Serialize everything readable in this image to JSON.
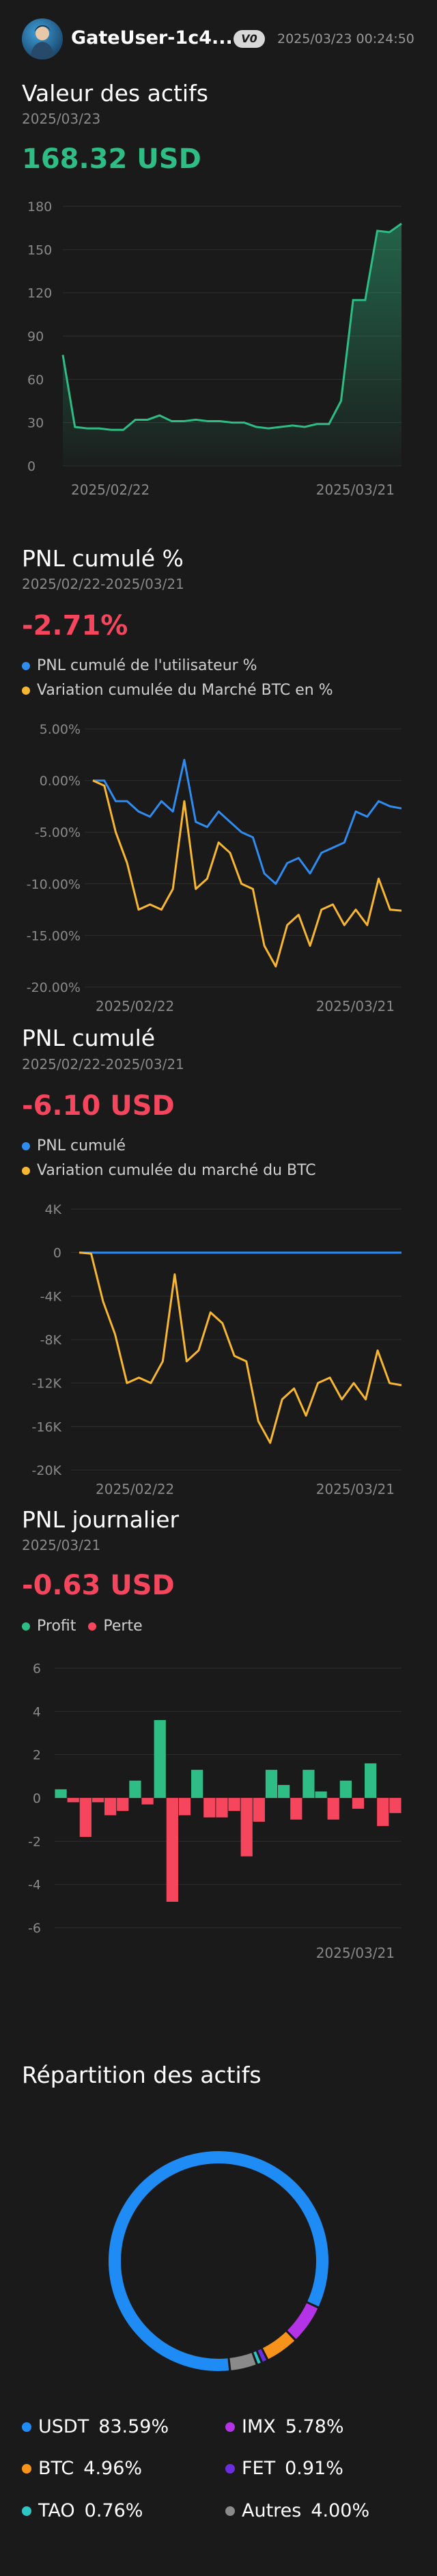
{
  "header": {
    "username": "GateUser-1c4...",
    "badge": "V0",
    "timestamp": "2025/03/23 00:24:50"
  },
  "asset_value": {
    "title": "Valeur des actifs",
    "date": "2025/03/23",
    "value": "168.32 USD",
    "color": "#2ebd85"
  },
  "pnl_pct": {
    "title": "PNL cumulé %",
    "range": "2025/02/22-2025/03/21",
    "value": "-2.71%",
    "color": "#f6465d",
    "legend_user": "PNL cumulé de l'utilisateur %",
    "legend_btc": "Variation cumulée du Marché BTC en %"
  },
  "pnl_usd": {
    "title": "PNL cumulé",
    "range": "2025/02/22-2025/03/21",
    "value": "-6.10 USD",
    "color": "#f6465d",
    "legend_user": "PNL cumulé",
    "legend_btc": "Variation cumulée du marché du BTC"
  },
  "pnl_daily": {
    "title": "PNL journalier",
    "date": "2025/03/21",
    "value": "-0.63 USD",
    "color": "#f6465d",
    "legend_profit": "Profit",
    "legend_loss": "Perte"
  },
  "allocation": {
    "title": "Répartition des actifs",
    "items": [
      {
        "name": "USDT",
        "pct": "83.59%",
        "value": 83.59,
        "color": "#1f8cf5"
      },
      {
        "name": "IMX",
        "pct": "5.78%",
        "value": 5.78,
        "color": "#b433e6"
      },
      {
        "name": "BTC",
        "pct": "4.96%",
        "value": 4.96,
        "color": "#f7931a"
      },
      {
        "name": "FET",
        "pct": "0.91%",
        "value": 0.91,
        "color": "#6a2ee0"
      },
      {
        "name": "TAO",
        "pct": "0.76%",
        "value": 0.76,
        "color": "#2ec4c4"
      },
      {
        "name": "Autres",
        "pct": "4.00%",
        "value": 4.0,
        "color": "#8a8a8a"
      }
    ]
  },
  "chart_data": [
    {
      "type": "area",
      "x_tick_labels": [
        "2025/02/22",
        "2025/03/21"
      ],
      "y_ticks": [
        0,
        30,
        60,
        90,
        120,
        150,
        180
      ],
      "ylim": [
        0,
        180
      ],
      "series": [
        {
          "values": [
            77,
            27,
            26,
            26,
            25,
            25,
            32,
            32,
            35,
            31,
            31,
            32,
            31,
            31,
            30,
            30,
            27,
            26,
            27,
            28,
            27,
            29,
            29,
            45,
            115,
            115,
            163,
            162,
            168
          ],
          "color": "#2ebd85"
        }
      ]
    },
    {
      "type": "line",
      "x_tick_labels": [
        "2025/02/22",
        "2025/03/21"
      ],
      "y_tick_labels": [
        "5.00%",
        "0.00%",
        "-5.00%",
        "-10.00%",
        "-15.00%",
        "-20.00%"
      ],
      "y_ticks": [
        5,
        0,
        -5,
        -10,
        -15,
        -20
      ],
      "ylim": [
        -20,
        5
      ],
      "series": [
        {
          "name": "PNL cumulé de l'utilisateur %",
          "color": "#2f8cf0",
          "values": [
            0,
            0,
            -2,
            -2,
            -3,
            -3.5,
            -2,
            -3,
            2,
            -4,
            -4.5,
            -3,
            -4,
            -5,
            -5.5,
            -9,
            -10,
            -8,
            -7.5,
            -9,
            -7,
            -6.5,
            -6,
            -3,
            -3.5,
            -2,
            -2.5,
            -2.7
          ]
        },
        {
          "name": "Variation cumulée du Marché BTC en %",
          "color": "#f7b731",
          "values": [
            0,
            -0.5,
            -5,
            -8,
            -12.5,
            -12,
            -12.5,
            -10.5,
            -2,
            -10.5,
            -9.5,
            -6,
            -7,
            -10,
            -10.5,
            -16,
            -18,
            -14,
            -13,
            -16,
            -12.5,
            -12,
            -14,
            -12.5,
            -14,
            -9.5,
            -12.5,
            -12.6
          ]
        }
      ]
    },
    {
      "type": "line",
      "x_tick_labels": [
        "2025/02/22",
        "2025/03/21"
      ],
      "y_tick_labels": [
        "4K",
        "0",
        "-4K",
        "-8K",
        "-12K",
        "-16K",
        "-20K"
      ],
      "y_ticks": [
        4000,
        0,
        -4000,
        -8000,
        -12000,
        -16000,
        -20000
      ],
      "ylim": [
        -20000,
        4000
      ],
      "series": [
        {
          "name": "PNL cumulé",
          "color": "#2f8cf0",
          "values": [
            0,
            -6,
            -6,
            -6,
            -6,
            -6,
            -6,
            -6,
            -6,
            -6,
            -6,
            -6,
            -6,
            -6,
            -6,
            -6,
            -6,
            -6,
            -6,
            -6,
            -6,
            -6,
            -6,
            -6,
            -6,
            -6,
            -6,
            -6
          ]
        },
        {
          "name": "Variation cumulée du marché du BTC",
          "color": "#f7b731",
          "values": [
            0,
            -100,
            -4500,
            -7500,
            -12000,
            -11500,
            -12000,
            -10000,
            -2000,
            -10000,
            -9000,
            -5500,
            -6500,
            -9500,
            -10000,
            -15500,
            -17500,
            -13500,
            -12500,
            -15000,
            -12000,
            -11500,
            -13500,
            -12000,
            -13500,
            -9000,
            -12000,
            -12200
          ]
        }
      ]
    },
    {
      "type": "bar",
      "x_tick_labels": [
        "2025/03/21"
      ],
      "y_ticks": [
        6,
        4,
        2,
        0,
        -2,
        -4,
        -6
      ],
      "ylim": [
        -6,
        6
      ],
      "series": [
        {
          "name": "Profit",
          "color": "#2ebd85"
        },
        {
          "name": "Perte",
          "color": "#f6465d"
        }
      ],
      "values": [
        0.4,
        -0.2,
        -1.8,
        -0.2,
        -0.8,
        -0.6,
        0.8,
        -0.3,
        3.6,
        -4.8,
        -0.8,
        1.3,
        -0.9,
        -0.9,
        -0.6,
        -2.7,
        -1.1,
        1.3,
        0.6,
        -1.0,
        1.3,
        0.3,
        -1.0,
        0.8,
        -0.5,
        1.6,
        -1.3,
        -0.7
      ]
    }
  ]
}
